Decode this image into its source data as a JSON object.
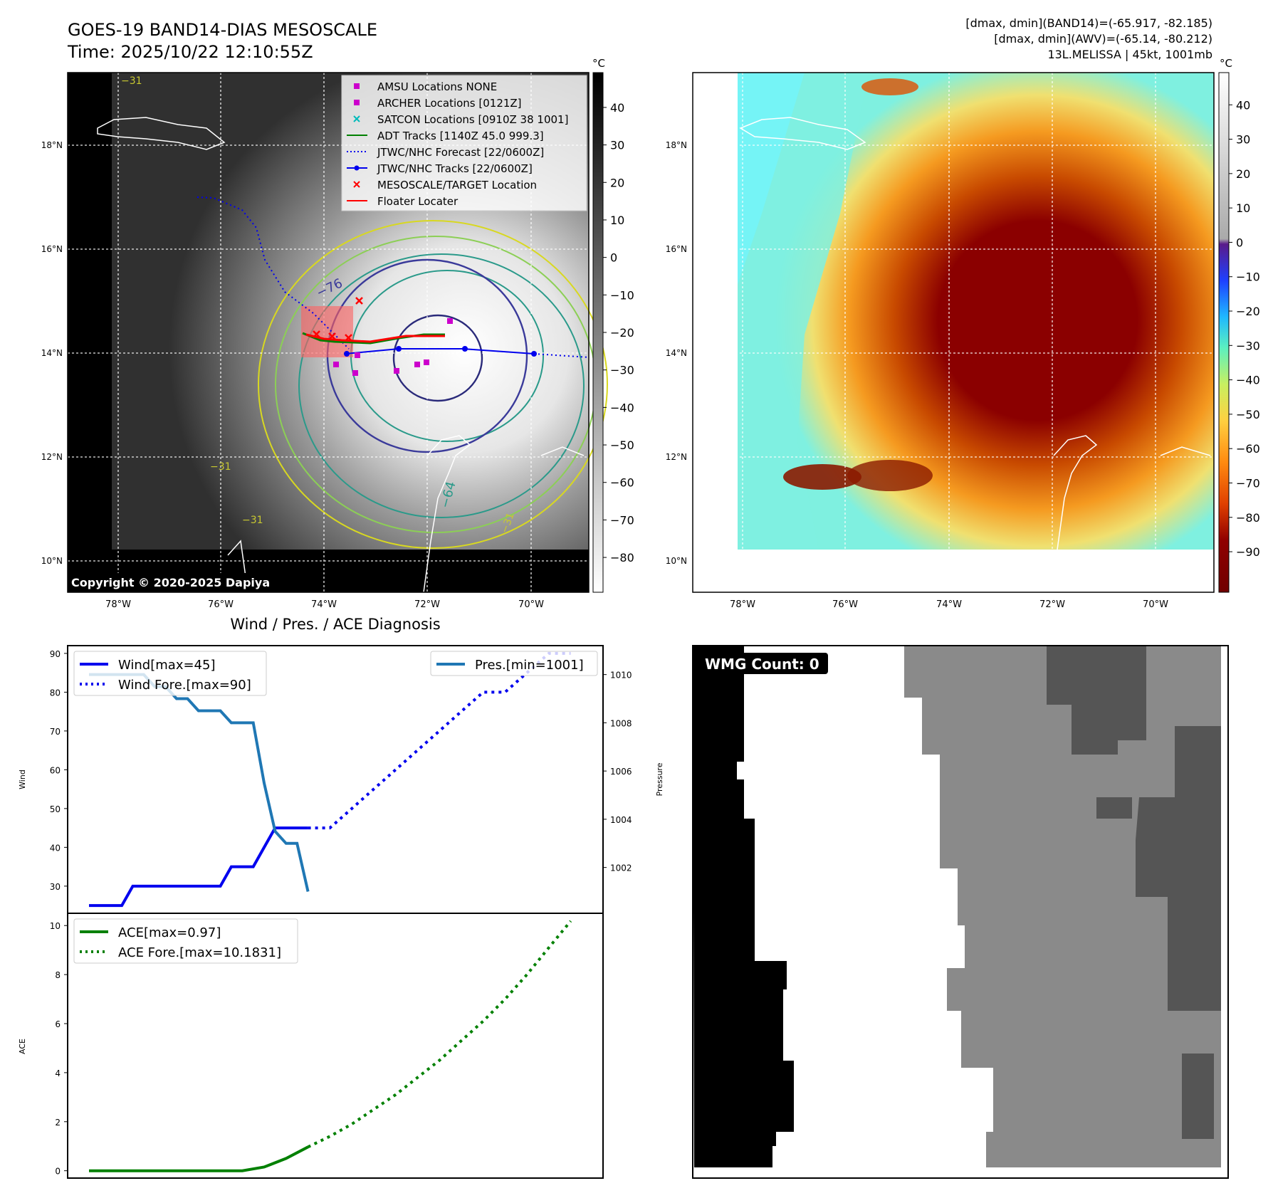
{
  "header": {
    "title": "GOES-19 BAND14-DIAS MESOSCALE",
    "time": "Time: 2025/10/22 12:10:55Z",
    "stats_band14": "[dmax, dmin](BAND14)=(-65.917, -82.185)",
    "stats_awv": "[dmax, dmin](AWV)=(-65.14, -80.212)",
    "storm": "13L.MELISSA | 45kt, 1001mb"
  },
  "colors": {
    "wind": "#0000ee",
    "pressure": "#1f77b4",
    "ace": "#008000",
    "red": "#ff0000",
    "magenta": "#cc00cc",
    "cyan": "#00bbbb"
  },
  "map": {
    "lon_ticks": [
      "78°W",
      "76°W",
      "74°W",
      "72°W",
      "70°W"
    ],
    "lat_ticks": [
      "18°N",
      "16°N",
      "14°N",
      "12°N",
      "10°N"
    ],
    "copyright": "Copyright © 2020-2025 Dapiya",
    "contour_labels": [
      "−76",
      "−64",
      "−31",
      "−31",
      "−31",
      "−31"
    ],
    "legend": [
      {
        "label": "AMSU Locations NONE",
        "icon": "magenta-square"
      },
      {
        "label": "ARCHER Locations [0121Z]",
        "icon": "magenta-square"
      },
      {
        "label": "SATCON Locations [0910Z 38 1001]",
        "icon": "cyan-x"
      },
      {
        "label": "ADT Tracks [1140Z 45.0 999.3]",
        "icon": "green-line"
      },
      {
        "label": "JTWC/NHC Forecast [22/0600Z]",
        "icon": "blue-dotted-line"
      },
      {
        "label": "JTWC/NHC Tracks [22/0600Z]",
        "icon": "blue-line-dot"
      },
      {
        "label": "MESOSCALE/TARGET Location",
        "icon": "red-x"
      },
      {
        "label": "Floater Locater",
        "icon": "red-line"
      }
    ],
    "colorbar_left": {
      "unit": "°C",
      "ticks": [
        "40",
        "30",
        "20",
        "10",
        "0",
        "−10",
        "−20",
        "−30",
        "−40",
        "−50",
        "−60",
        "−70",
        "−80"
      ]
    },
    "colorbar_right": {
      "unit": "°C",
      "ticks": [
        "40",
        "30",
        "20",
        "10",
        "0",
        "−10",
        "−20",
        "−30",
        "−40",
        "−50",
        "−60",
        "−70",
        "−80",
        "−90"
      ]
    }
  },
  "wmg": {
    "label": "WMG Count: 0"
  },
  "chart_data": [
    {
      "type": "line",
      "title": "Wind / Pres. / ACE Diagnosis",
      "ylabel": "Wind",
      "y2label": "Pressure",
      "ylim": [
        23,
        92
      ],
      "y2lim": [
        1000.1,
        1011.2
      ],
      "yticks": [
        30,
        40,
        50,
        60,
        70,
        80,
        90
      ],
      "y2ticks": [
        1002,
        1004,
        1006,
        1008,
        1010
      ],
      "series": [
        {
          "name": "Wind[max=45]",
          "style": "solid",
          "axis": "left",
          "x": [
            0,
            1,
            2,
            3,
            4,
            5,
            6,
            7,
            8,
            9,
            10,
            11,
            12,
            13,
            14,
            15,
            16,
            17,
            18,
            19,
            20
          ],
          "values": [
            25,
            25,
            25,
            25,
            30,
            30,
            30,
            30,
            30,
            30,
            30,
            30,
            30,
            35,
            35,
            35,
            40,
            45,
            45,
            45,
            45
          ]
        },
        {
          "name": "Wind Fore.[max=90]",
          "style": "dotted",
          "axis": "left",
          "x": [
            20,
            21,
            22,
            24,
            26,
            28,
            30,
            32,
            34,
            36,
            38,
            40,
            42,
            44
          ],
          "values": [
            45,
            45,
            45,
            50,
            55,
            60,
            65,
            70,
            75,
            80,
            80,
            85,
            90,
            90
          ]
        },
        {
          "name": "Pres.[min=1001]",
          "style": "solid",
          "axis": "right",
          "x": [
            0,
            3,
            4,
            5,
            6,
            7,
            8,
            9,
            10,
            11,
            12,
            13,
            14,
            15,
            16,
            17,
            18,
            19,
            20
          ],
          "values": [
            1010,
            1010,
            1010,
            1010,
            1009.5,
            1009.5,
            1009,
            1009,
            1008.5,
            1008.5,
            1008.5,
            1008,
            1008,
            1008,
            1005.5,
            1003.5,
            1003,
            1003,
            1001
          ]
        }
      ]
    },
    {
      "type": "line",
      "ylabel": "ACE",
      "ylim": [
        -0.3,
        10.5
      ],
      "yticks": [
        0,
        2,
        4,
        6,
        8,
        10
      ],
      "series": [
        {
          "name": "ACE[max=0.97]",
          "style": "solid",
          "x": [
            0,
            12,
            14,
            16,
            18,
            20
          ],
          "values": [
            0,
            0,
            0,
            0.15,
            0.5,
            0.97
          ]
        },
        {
          "name": "ACE Fore.[max=10.1831]",
          "style": "dotted",
          "x": [
            20,
            22,
            24,
            26,
            28,
            30,
            32,
            34,
            36,
            38,
            40,
            42,
            44
          ],
          "values": [
            0.97,
            1.4,
            1.9,
            2.5,
            3.1,
            3.8,
            4.5,
            5.3,
            6.1,
            7.0,
            8.0,
            9.1,
            10.1831
          ]
        }
      ]
    }
  ]
}
